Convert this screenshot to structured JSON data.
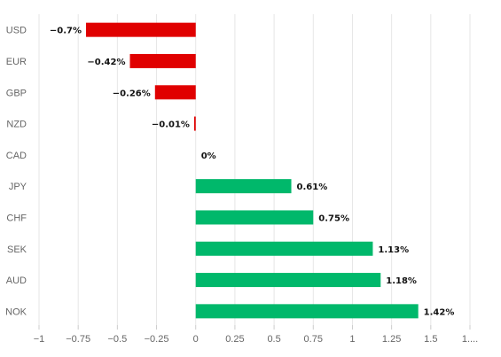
{
  "chart_data": {
    "type": "bar",
    "orientation": "horizontal",
    "title": "",
    "xlabel": "",
    "ylabel": "",
    "categories": [
      "USD",
      "EUR",
      "GBP",
      "NZD",
      "CAD",
      "JPY",
      "CHF",
      "SEK",
      "AUD",
      "NOK"
    ],
    "values": [
      -0.7,
      -0.42,
      -0.26,
      -0.01,
      0,
      0.61,
      0.75,
      1.13,
      1.18,
      1.42
    ],
    "data_labels": [
      "−0.7%",
      "−0.42%",
      "−0.26%",
      "−0.01%",
      "0%",
      "0.61%",
      "0.75%",
      "1.13%",
      "1.18%",
      "1.42%"
    ],
    "xlim": [
      -1,
      1.75
    ],
    "x_ticks": [
      -1,
      -0.75,
      -0.5,
      -0.25,
      0,
      0.25,
      0.5,
      0.75,
      1,
      1.25,
      1.5,
      1.75
    ],
    "x_tick_labels": [
      "−1",
      "−0.75",
      "−0.5",
      "−0.25",
      "0",
      "0.25",
      "0.5",
      "0.75",
      "1",
      "1.25",
      "1.5",
      "1...."
    ],
    "grid": true,
    "colors": {
      "positive": "#00b86b",
      "negative": "#e00000",
      "grid": "#e6e6e6",
      "text": "#666666"
    }
  }
}
